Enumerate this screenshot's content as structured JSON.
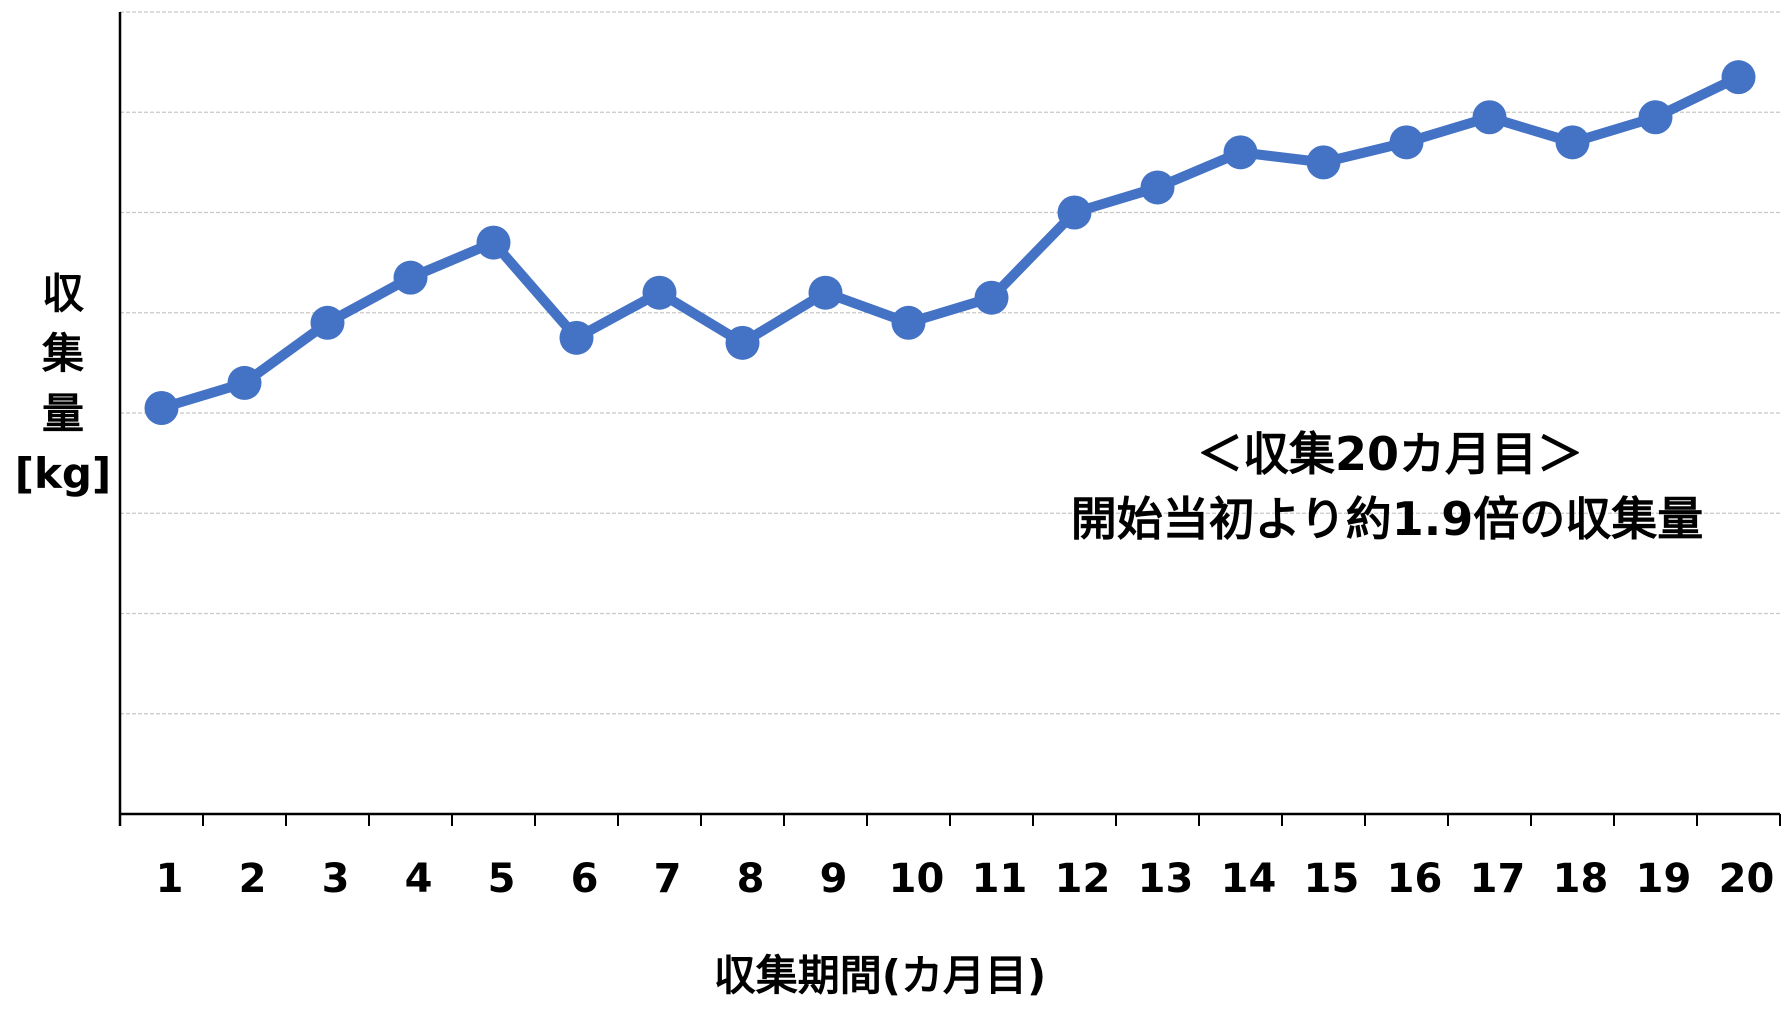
{
  "chart_data": {
    "type": "line",
    "xlabel": "収集期間(カ月目)",
    "ylabel": "収集量[kg]",
    "ylabel_lines": [
      "収",
      "集",
      "量",
      "[kg]"
    ],
    "categories": [
      "1",
      "2",
      "3",
      "4",
      "5",
      "6",
      "7",
      "8",
      "9",
      "10",
      "11",
      "12",
      "13",
      "14",
      "15",
      "16",
      "17",
      "18",
      "19",
      "20"
    ],
    "series": [
      {
        "values": [
          4.05,
          4.3,
          4.9,
          5.35,
          5.7,
          4.75,
          5.2,
          4.7,
          5.2,
          4.9,
          5.15,
          6.0,
          6.25,
          6.6,
          6.5,
          6.7,
          6.95,
          6.7,
          6.95,
          7.35
        ]
      }
    ],
    "ylim": [
      0,
      8
    ],
    "gridlines": true,
    "annotation": [
      "＜収集20カ月目＞",
      "開始当初より約1.9倍の収集量"
    ],
    "colors": {
      "line": "#4472C4",
      "grid": "#C8C8C8",
      "axis": "#000000"
    }
  }
}
